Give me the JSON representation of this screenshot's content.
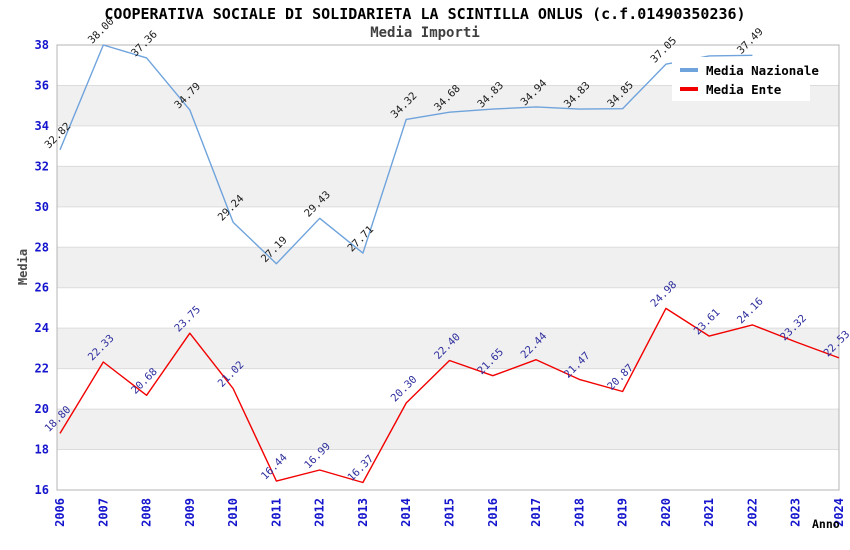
{
  "chart_data": {
    "type": "line",
    "title": "COOPERATIVA SOCIALE DI SOLIDARIETA LA SCINTILLA ONLUS (c.f.01490350236)",
    "subtitle": "Media Importi",
    "xlabel": "Anno",
    "ylabel": "Media",
    "ylim": [
      16,
      38
    ],
    "ytick_interval": 2,
    "yticks": [
      16,
      18,
      20,
      22,
      24,
      26,
      28,
      30,
      32,
      34,
      36,
      38
    ],
    "grid": "alternating-horizontal-bands",
    "categories": [
      "2006",
      "2007",
      "2008",
      "2009",
      "2010",
      "2011",
      "2012",
      "2013",
      "2014",
      "2015",
      "2016",
      "2017",
      "2018",
      "2019",
      "2020",
      "2021",
      "2022",
      "2023",
      "2024"
    ],
    "series": [
      {
        "name": "Media Nazionale",
        "color": "#6FA3DC",
        "label_color": "#1a1a1a",
        "values": [
          32.82,
          38.0,
          37.36,
          34.79,
          29.24,
          27.19,
          29.43,
          27.71,
          34.32,
          34.68,
          34.83,
          34.94,
          34.83,
          34.85,
          37.05,
          37.46,
          37.49,
          null,
          null
        ],
        "labels": [
          "32.82",
          "38.00",
          "37.36",
          "34.79",
          "29.24",
          "27.19",
          "29.43",
          "27.71",
          "34.32",
          "34.68",
          "34.83",
          "34.94",
          "34.83",
          "34.85",
          "37.05",
          null,
          "37.49",
          null,
          null
        ],
        "note": "2021 label and 2023-2024 segment hidden behind legend box"
      },
      {
        "name": "Media Ente",
        "color": "#F20000",
        "label_color": "#2E2E9E",
        "values": [
          18.8,
          22.33,
          20.68,
          23.75,
          21.02,
          16.44,
          16.99,
          16.37,
          20.3,
          22.4,
          21.65,
          22.44,
          21.47,
          20.87,
          24.98,
          23.61,
          24.16,
          23.32,
          22.53
        ],
        "labels": [
          "18.80",
          "22.33",
          "20.68",
          "23.75",
          "21.02",
          "16.44",
          "16.99",
          "16.37",
          "20.30",
          "22.40",
          "21.65",
          "22.44",
          "21.47",
          "20.87",
          "24.98",
          "23.61",
          "24.16",
          "23.32",
          "22.53"
        ]
      }
    ],
    "legend": {
      "position": "top-right",
      "entries": [
        "Media Nazionale",
        "Media Ente"
      ]
    },
    "colors": {
      "band": "#F0F0F0",
      "gridline": "#DCDCDC",
      "plot_border": "#B4B4B4",
      "tick_labels": "#1515CE",
      "axis_title": "#4A4A4A",
      "title": "#000000"
    }
  }
}
